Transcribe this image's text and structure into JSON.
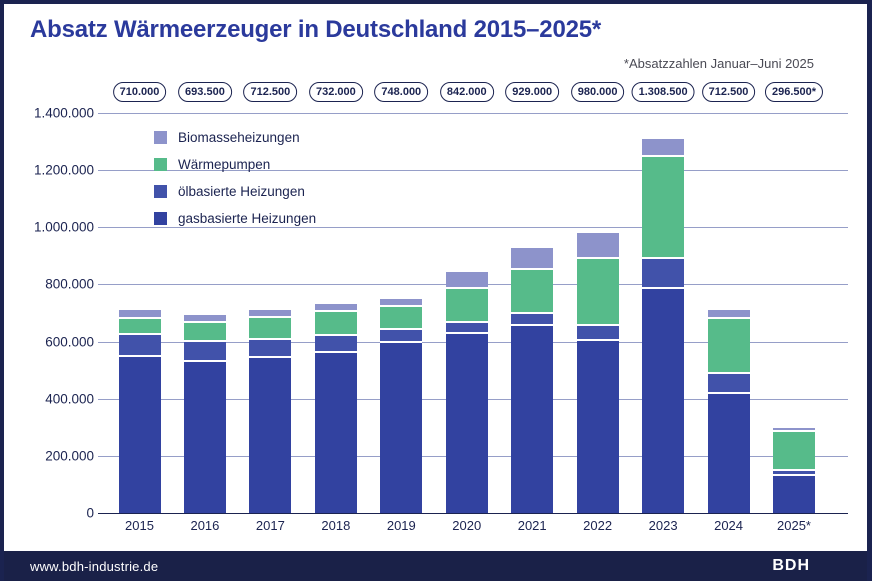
{
  "header": {
    "title": "Absatz Wärmeerzeuger in Deutschland 2015–2025*",
    "subtitle": "*Absatzzahlen Januar–Juni 2025"
  },
  "footer": {
    "website": "www.bdh-industrie.de",
    "logo": "BDH"
  },
  "colors": {
    "navy": "#1b2350",
    "title_blue": "#2b3a9c",
    "subtitle_gray": "#4a4a54",
    "gridline": "#969ec8",
    "footer_bg": "#1a2148",
    "gas": "#3242a0",
    "oil": "#4152aa",
    "heatpump": "#56bb8a",
    "biomass": "#8d93cb"
  },
  "chart_data": {
    "type": "bar",
    "stacked": true,
    "title": "Absatz Wärmeerzeuger in Deutschland 2015–2025*",
    "note": "*Absatzzahlen Januar–Juni 2025",
    "categories": [
      "2015",
      "2016",
      "2017",
      "2018",
      "2019",
      "2020",
      "2021",
      "2022",
      "2023",
      "2024",
      "2025*"
    ],
    "totals": [
      710000,
      693500,
      712500,
      732000,
      748000,
      842000,
      929000,
      980000,
      1308500,
      712500,
      296500
    ],
    "totals_display": [
      "710.000",
      "693.500",
      "712.500",
      "732.000",
      "748.000",
      "842.000",
      "929.000",
      "980.000",
      "1.308.500",
      "712.500",
      "296.500*"
    ],
    "series": [
      {
        "name": "gasbasierte Heizungen",
        "color_key": "gas",
        "values": [
          545000,
          527500,
          543000,
          560000,
          595000,
          627500,
          653500,
          603000,
          782500,
          415500,
          129500
        ]
      },
      {
        "name": "ölbasierte Heizungen",
        "color_key": "oil",
        "values": [
          77000,
          71500,
          62000,
          61000,
          46000,
          38000,
          44000,
          51000,
          107000,
          70500,
          16000
        ]
      },
      {
        "name": "Wärmepumpen",
        "color_key": "heatpump",
        "values": [
          57000,
          66500,
          78000,
          84000,
          79000,
          120000,
          154000,
          236000,
          356000,
          193000,
          139500
        ]
      },
      {
        "name": "Biomasseheizungen",
        "color_key": "biomass",
        "values": [
          31000,
          28000,
          29500,
          27000,
          28000,
          56500,
          77500,
          90000,
          63000,
          33500,
          11500
        ]
      }
    ],
    "legend_order": [
      "Biomasseheizungen",
      "Wärmepumpen",
      "ölbasierte Heizungen",
      "gasbasierte Heizungen"
    ],
    "ylim": [
      0,
      1400000
    ],
    "y_ticks_display": [
      "0",
      "200.000",
      "400.000",
      "600.000",
      "800.000",
      "1.000.000",
      "1.200.000",
      "1.400.000"
    ],
    "grid": true,
    "legend_position": "top-left-inside",
    "xlabel": "",
    "ylabel": ""
  }
}
